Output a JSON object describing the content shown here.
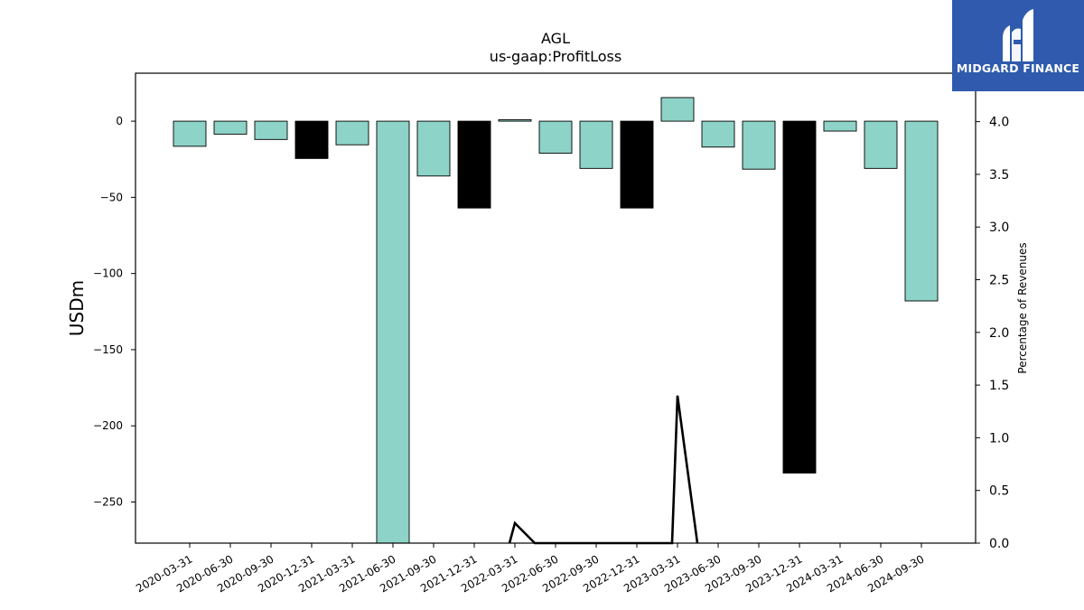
{
  "chart_data": {
    "type": "bar",
    "title": "AGL",
    "subtitle": "us-gaap:ProfitLoss",
    "ylabel": "USDm",
    "y2label": "Percentage of Revenues",
    "categories": [
      "2020-03-31",
      "2020-06-30",
      "2020-09-30",
      "2020-12-31",
      "2021-03-31",
      "2021-06-30",
      "2021-09-30",
      "2021-12-31",
      "2022-03-31",
      "2022-06-30",
      "2022-09-30",
      "2022-12-31",
      "2023-03-31",
      "2023-06-30",
      "2023-09-30",
      "2023-12-31",
      "2024-03-31",
      "2024-06-30",
      "2024-09-30"
    ],
    "values": [
      -16.5,
      -8.5,
      -12,
      -24.5,
      -15.5,
      -280,
      -36,
      -57,
      1,
      -21,
      -31,
      -57,
      15.5,
      -17,
      -31.5,
      -231,
      -6.5,
      -31,
      -118
    ],
    "bar_colors": [
      "#8dd3c7",
      "#8dd3c7",
      "#8dd3c7",
      "#000000",
      "#8dd3c7",
      "#8dd3c7",
      "#8dd3c7",
      "#000000",
      "#8dd3c7",
      "#8dd3c7",
      "#8dd3c7",
      "#000000",
      "#8dd3c7",
      "#8dd3c7",
      "#8dd3c7",
      "#000000",
      "#8dd3c7",
      "#8dd3c7",
      "#8dd3c7"
    ],
    "ylim": [
      -277,
      31.5
    ],
    "yticks": [
      0,
      -50,
      -100,
      -150,
      -200,
      -250
    ],
    "ytick_labels": [
      "0",
      "−50",
      "−100",
      "−150",
      "−200",
      "−250"
    ],
    "y2lim": [
      0,
      4.46
    ],
    "y2ticks": [
      0,
      0.5,
      1.0,
      1.5,
      2.0,
      2.5,
      3.0,
      3.5,
      4.0
    ],
    "y2tick_labels": [
      "0.0",
      "0.5",
      "1.0",
      "1.5",
      "2.0",
      "2.5",
      "3.0",
      "3.5",
      "4.0"
    ],
    "line_series": {
      "values": [
        null,
        null,
        null,
        null,
        null,
        null,
        null,
        null,
        0.19,
        null,
        null,
        null,
        1.4,
        null,
        null,
        null,
        null,
        null,
        null
      ]
    },
    "grid": false
  },
  "logo": {
    "text": "MIDGARD FINANCE",
    "background": "#2f5aad"
  }
}
